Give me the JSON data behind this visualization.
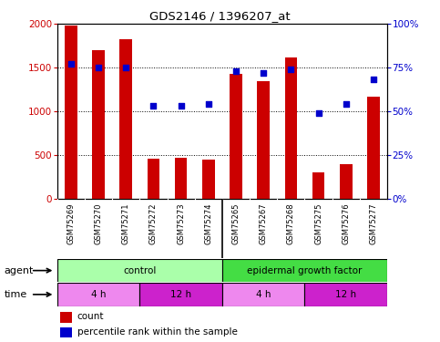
{
  "title": "GDS2146 / 1396207_at",
  "samples": [
    "GSM75269",
    "GSM75270",
    "GSM75271",
    "GSM75272",
    "GSM75273",
    "GSM75274",
    "GSM75265",
    "GSM75267",
    "GSM75268",
    "GSM75275",
    "GSM75276",
    "GSM75277"
  ],
  "counts": [
    1980,
    1700,
    1820,
    460,
    470,
    445,
    1430,
    1340,
    1620,
    295,
    390,
    1170
  ],
  "percentiles": [
    77,
    75,
    75,
    53,
    53,
    54,
    73,
    72,
    74,
    49,
    54,
    68
  ],
  "bar_color": "#cc0000",
  "dot_color": "#0000cc",
  "ylim_left": [
    0,
    2000
  ],
  "ylim_right": [
    0,
    100
  ],
  "yticks_left": [
    0,
    500,
    1000,
    1500,
    2000
  ],
  "ytick_labels_left": [
    "0",
    "500",
    "1000",
    "1500",
    "2000"
  ],
  "yticks_right": [
    0,
    25,
    50,
    75,
    100
  ],
  "ytick_labels_right": [
    "0%",
    "25%",
    "50%",
    "75%",
    "100%"
  ],
  "agent_groups": [
    {
      "label": "control",
      "start": 0,
      "end": 6,
      "color": "#aaffaa",
      "edge_color": "#000000"
    },
    {
      "label": "epidermal growth factor",
      "start": 6,
      "end": 12,
      "color": "#44dd44",
      "edge_color": "#000000"
    }
  ],
  "time_groups": [
    {
      "label": "4 h",
      "start": 0,
      "end": 3,
      "color": "#ee88ee"
    },
    {
      "label": "12 h",
      "start": 3,
      "end": 6,
      "color": "#cc22cc"
    },
    {
      "label": "4 h",
      "start": 6,
      "end": 9,
      "color": "#ee88ee"
    },
    {
      "label": "12 h",
      "start": 9,
      "end": 12,
      "color": "#cc22cc"
    }
  ],
  "sample_bg": "#cccccc",
  "bg_color": "#ffffff",
  "grid_color": "#000000",
  "legend_count_color": "#cc0000",
  "legend_dot_color": "#0000cc"
}
